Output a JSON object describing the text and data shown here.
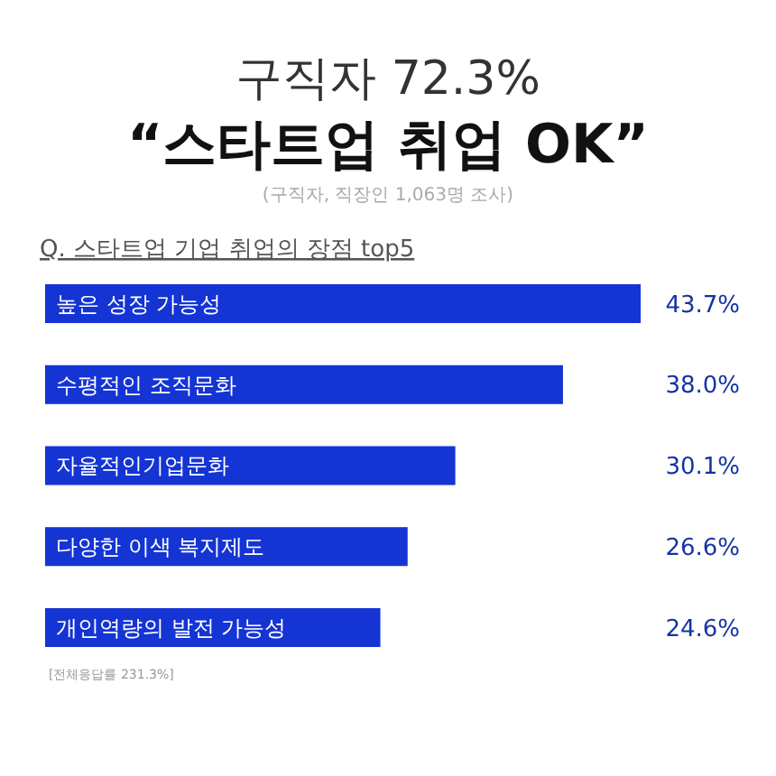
{
  "chart_data": {
    "type": "bar",
    "orientation": "horizontal",
    "title": "구직자 72.3%\n“스타트업 취업 OK”",
    "subtitle": "(구직자, 직장인 1,063명 조사)",
    "annotations": [
      "Q. 스타트업 기업 취업의 장점 top5",
      "[전체응답률 231.3%]"
    ],
    "categories": [
      "높은 성장 가능성",
      "수평적인 조직문화",
      "자율적인기업문화",
      "다양한 이색 복지제도",
      "개인역량의 발전 가능성"
    ],
    "values": [
      43.7,
      38.0,
      30.1,
      26.6,
      24.6
    ],
    "value_labels": [
      "43.7%",
      "38.0%",
      "30.1%",
      "26.6%",
      "24.6%"
    ],
    "color": "#1434d4"
  }
}
